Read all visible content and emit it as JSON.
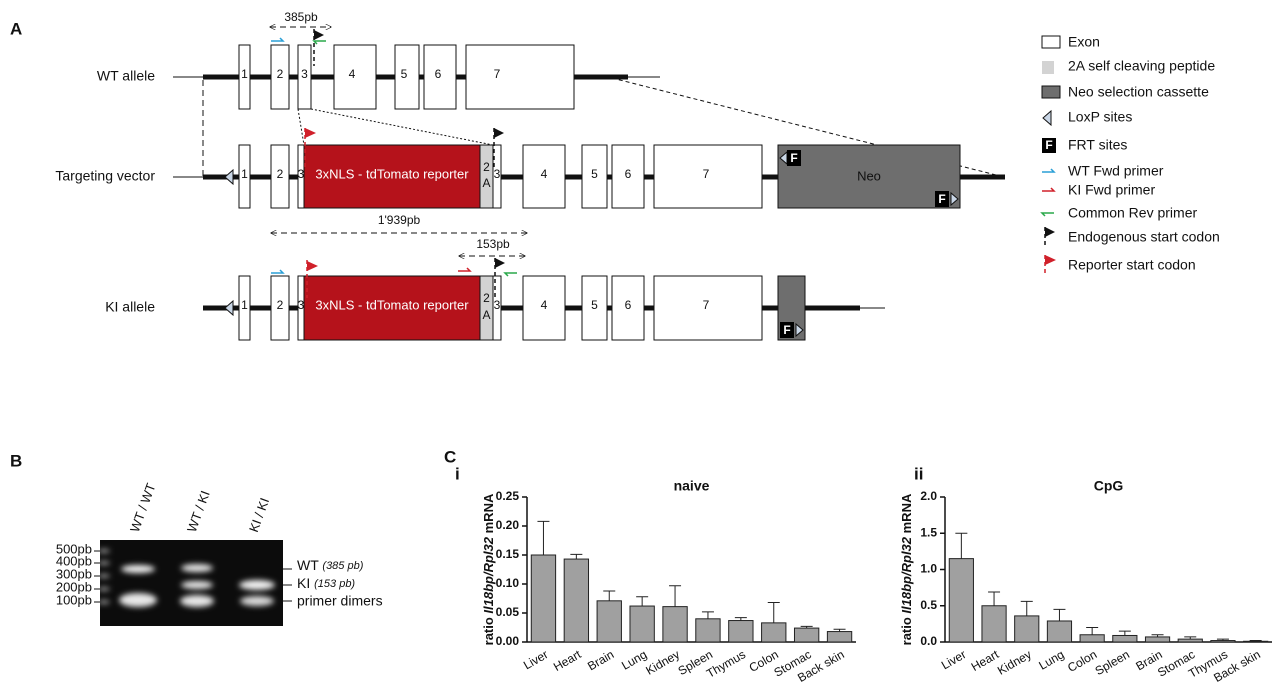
{
  "panel_labels": {
    "a": "A",
    "b": "B",
    "c": "C"
  },
  "panel_a": {
    "wt_amplicon": "385pb",
    "ki_long_amplicon": "1'939pb",
    "ki_amplicon": "153pb",
    "rows": [
      {
        "label": "WT allele",
        "exons": [
          "1",
          "2",
          "3",
          "4",
          "5",
          "6",
          "7"
        ]
      },
      {
        "label": "Targeting vector",
        "exons": [
          "1",
          "2",
          "3",
          "3",
          "4",
          "5",
          "6",
          "7"
        ],
        "reporter": "3xNLS - tdTomato reporter",
        "two_a": [
          "2",
          "A"
        ],
        "neo": "Neo"
      },
      {
        "label": "KI allele",
        "exons": [
          "1",
          "2",
          "3",
          "3",
          "4",
          "5",
          "6",
          "7"
        ],
        "reporter": "3xNLS - tdTomato reporter",
        "two_a": [
          "2",
          "A"
        ]
      }
    ],
    "frt_label": "F",
    "legend": [
      "Exon",
      "2A self cleaving peptide",
      "Neo selection cassette",
      "LoxP sites",
      "FRT sites",
      "WT Fwd primer",
      "KI Fwd primer",
      "Common Rev primer",
      "Endogenous start codon",
      "Reporter start codon"
    ]
  },
  "panel_b": {
    "lanes": [
      "WT / WT",
      "WT / KI",
      "KI / KI"
    ],
    "ladder": [
      "500pb",
      "400pb",
      "300pb",
      "200pb",
      "100pb"
    ],
    "bands": [
      {
        "name": "WT",
        "size": "(385 pb)"
      },
      {
        "name": "KI",
        "size": "(153 pb)"
      },
      {
        "name": "primer dimers"
      }
    ]
  },
  "chart_data": [
    {
      "type": "bar",
      "subpanel": "i",
      "title": "naive",
      "y_label_parts": [
        "ratio ",
        "Il18bp/Rpl32",
        " mRNA"
      ],
      "categories": [
        "Liver",
        "Heart",
        "Brain",
        "Lung",
        "Kidney",
        "Spleen",
        "Thymus",
        "Colon",
        "Stomac",
        "Back skin"
      ],
      "values": [
        0.15,
        0.143,
        0.071,
        0.062,
        0.061,
        0.04,
        0.037,
        0.033,
        0.024,
        0.018
      ],
      "errors": [
        0.058,
        0.008,
        0.017,
        0.016,
        0.036,
        0.012,
        0.005,
        0.035,
        0.003,
        0.004
      ],
      "color": "#a0a0a0",
      "ylim": [
        0,
        0.25
      ],
      "yticks": [
        {
          "value": 0,
          "label": "0.00"
        },
        0.05,
        {
          "value": 0.1,
          "label": "0.10"
        },
        0.15,
        {
          "value": 0.2,
          "label": "0.20"
        },
        0.25
      ]
    },
    {
      "type": "bar",
      "subpanel": "ii",
      "title": "CpG",
      "y_label_parts": [
        "ratio ",
        "Il18bp/Rpl32",
        " mRNA"
      ],
      "categories": [
        "Liver",
        "Heart",
        "Kidney",
        "Lung",
        "Colon",
        "Spleen",
        "Brain",
        "Stomac",
        "Thymus",
        "Back skin"
      ],
      "values": [
        1.15,
        0.5,
        0.36,
        0.29,
        0.1,
        0.09,
        0.07,
        0.04,
        0.02,
        0.01
      ],
      "errors": [
        0.35,
        0.19,
        0.2,
        0.16,
        0.1,
        0.06,
        0.03,
        0.03,
        0.02,
        0.01
      ],
      "color": "#a0a0a0",
      "ylim": [
        0,
        2
      ],
      "yticks": [
        {
          "value": 0,
          "label": "0.0"
        },
        0.5,
        {
          "value": 1,
          "label": "1.0"
        },
        1.5,
        {
          "value": 2,
          "label": "2.0"
        }
      ]
    }
  ]
}
